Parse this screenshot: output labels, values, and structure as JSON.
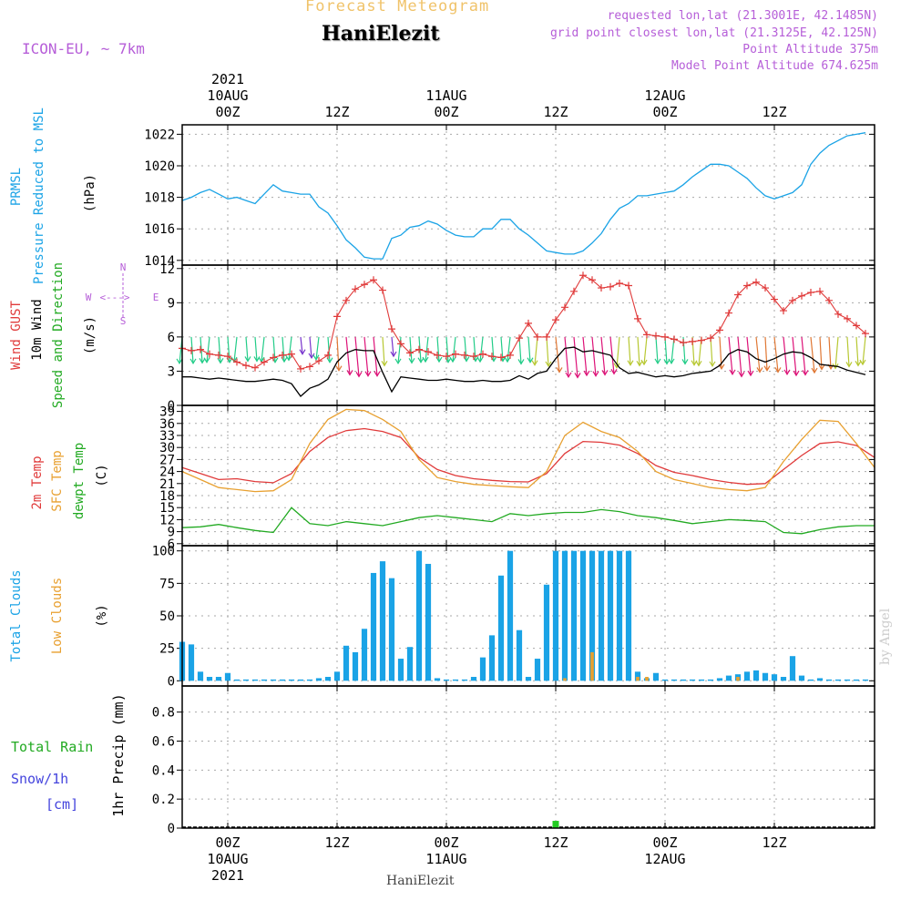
{
  "header": {
    "title": "Forecast Meteogram",
    "location": "HaniElezit",
    "model": "ICON-EU, ~ 7km",
    "requested": "requested lon,lat (21.3001E, 42.1485N)",
    "grid_point": "grid point closest lon,lat (21.3125E, 42.125N)",
    "point_altitude": "Point Altitude 375m",
    "model_altitude": "Model Point Altitude 674.625m"
  },
  "footer": {
    "location": "HaniElezit",
    "watermark": "by Angel"
  },
  "time_axis": {
    "start_hour": -5,
    "end_hour": 71,
    "major_ticks": [
      {
        "hour": 0,
        "top": "00Z",
        "date": "10AUG",
        "year": "2021"
      },
      {
        "hour": 12,
        "top": "12Z",
        "date": "",
        "year": ""
      },
      {
        "hour": 24,
        "top": "00Z",
        "date": "11AUG",
        "year": ""
      },
      {
        "hour": 36,
        "top": "12Z",
        "date": "",
        "year": ""
      },
      {
        "hour": 48,
        "top": "00Z",
        "date": "12AUG",
        "year": ""
      },
      {
        "hour": 60,
        "top": "12Z",
        "date": "",
        "year": ""
      }
    ]
  },
  "panel_labels": {
    "pressure": [
      {
        "text": "PRMSL",
        "color": "#1aa3e6"
      },
      {
        "text": "Pressure Reduced to MSL",
        "color": "#1aa3e6"
      },
      {
        "text": "(hPa)",
        "color": "#000000"
      }
    ],
    "wind": [
      {
        "text": "Wind GUST",
        "color": "#e03a3a"
      },
      {
        "text": "10m Wind",
        "color": "#000000"
      },
      {
        "text": "Speed and Direction",
        "color": "#22aa22"
      },
      {
        "text": "(m/s)",
        "color": "#000000"
      }
    ],
    "compass": {
      "w": "W",
      "e": "E",
      "n": "N",
      "s": "S",
      "color": "#b65ed8"
    },
    "temp": [
      {
        "text": "2m Temp",
        "color": "#e03a3a"
      },
      {
        "text": "SFC Temp",
        "color": "#e8a030"
      },
      {
        "text": "dewpt Temp",
        "color": "#22aa22"
      },
      {
        "text": "(C)",
        "color": "#000000"
      }
    ],
    "clouds": [
      {
        "text": "Total Clouds",
        "color": "#1aa3e6"
      },
      {
        "text": "Low Clouds",
        "color": "#e8a030"
      },
      {
        "text": "(%)",
        "color": "#000000"
      }
    ],
    "precip_side": [
      {
        "text": "Total  Rain",
        "color": "#22aa22"
      },
      {
        "text": "Snow/1h",
        "color": "#4444dd"
      },
      {
        "text": "[cm]",
        "color": "#4444dd"
      }
    ],
    "precip_axis": {
      "text": "1hr Precip (mm)",
      "color": "#000000"
    }
  },
  "chart_data": [
    {
      "type": "line",
      "title": "",
      "ylabel": "(hPa)",
      "ylim": [
        1013.7,
        1022.6
      ],
      "yticks": [
        1014,
        1016,
        1018,
        1020,
        1022
      ],
      "series": [
        {
          "name": "PRMSL",
          "color": "#1aa3e6",
          "x": [
            -5,
            -4,
            -3,
            -2,
            -1,
            0,
            1,
            2,
            3,
            4,
            5,
            6,
            7,
            8,
            9,
            10,
            11,
            12,
            13,
            14,
            15,
            16,
            17,
            18,
            19,
            20,
            21,
            22,
            23,
            24,
            25,
            26,
            27,
            28,
            29,
            30,
            31,
            32,
            33,
            34,
            35,
            36,
            37,
            38,
            39,
            40,
            41,
            42,
            43,
            44,
            45,
            46,
            47,
            48,
            49,
            50,
            51,
            52,
            53,
            54,
            55,
            56,
            57,
            58,
            59,
            60,
            61,
            62,
            63,
            64,
            65,
            66,
            67,
            68,
            69,
            70
          ],
          "values": [
            1017.8,
            1018.0,
            1018.3,
            1018.5,
            1018.2,
            1017.9,
            1018.0,
            1017.8,
            1017.6,
            1018.2,
            1018.8,
            1018.4,
            1018.3,
            1018.2,
            1018.2,
            1017.4,
            1017.0,
            1016.2,
            1015.3,
            1014.8,
            1014.2,
            1014.1,
            1014.1,
            1015.4,
            1015.6,
            1016.1,
            1016.2,
            1016.5,
            1016.3,
            1015.9,
            1015.6,
            1015.5,
            1015.5,
            1016.0,
            1016.0,
            1016.6,
            1016.6,
            1016.0,
            1015.6,
            1015.1,
            1014.6,
            1014.5,
            1014.4,
            1014.4,
            1014.6,
            1015.1,
            1015.7,
            1016.6,
            1017.3,
            1017.6,
            1018.1,
            1018.1,
            1018.2,
            1018.3,
            1018.4,
            1018.8,
            1019.3,
            1019.7,
            1020.1,
            1020.1,
            1020.0,
            1019.6,
            1019.2,
            1018.6,
            1018.1,
            1017.9,
            1018.1,
            1018.3,
            1018.8,
            1020.1,
            1020.8,
            1021.3,
            1021.6,
            1021.9,
            1022.0,
            1022.1
          ]
        }
      ]
    },
    {
      "type": "line",
      "title": "",
      "ylabel": "(m/s)",
      "ylim": [
        0,
        12.3
      ],
      "yticks": [
        0,
        3,
        6,
        9,
        12
      ],
      "series": [
        {
          "name": "Wind GUST",
          "color": "#e03a3a",
          "marker": "+",
          "x": [
            -5,
            -4,
            -3,
            -2,
            -1,
            0,
            1,
            2,
            3,
            4,
            5,
            6,
            7,
            8,
            9,
            10,
            11,
            12,
            13,
            14,
            15,
            16,
            17,
            18,
            19,
            20,
            21,
            22,
            23,
            24,
            25,
            26,
            27,
            28,
            29,
            30,
            31,
            32,
            33,
            34,
            35,
            36,
            37,
            38,
            39,
            40,
            41,
            42,
            43,
            44,
            45,
            46,
            47,
            48,
            49,
            50,
            51,
            52,
            53,
            54,
            55,
            56,
            57,
            58,
            59,
            60,
            61,
            62,
            63,
            64,
            65,
            66,
            67,
            68,
            69,
            70
          ],
          "values": [
            5.0,
            4.8,
            4.9,
            4.5,
            4.4,
            4.3,
            3.8,
            3.5,
            3.3,
            3.8,
            4.2,
            4.4,
            4.5,
            3.2,
            3.4,
            3.9,
            4.4,
            7.8,
            9.2,
            10.2,
            10.6,
            11.0,
            10.1,
            6.7,
            5.4,
            4.6,
            4.9,
            4.7,
            4.4,
            4.3,
            4.5,
            4.4,
            4.3,
            4.5,
            4.3,
            4.2,
            4.4,
            5.9,
            7.2,
            6.0,
            6.0,
            7.5,
            8.6,
            10.0,
            11.4,
            11.0,
            10.3,
            10.4,
            10.7,
            10.5,
            7.6,
            6.2,
            6.1,
            6.0,
            5.8,
            5.5,
            5.6,
            5.7,
            5.9,
            6.6,
            8.1,
            9.7,
            10.5,
            10.8,
            10.3,
            9.3,
            8.3,
            9.2,
            9.6,
            9.9,
            10.0,
            9.2,
            8.0,
            7.6,
            7.0,
            6.3
          ]
        },
        {
          "name": "10m Wind",
          "color": "#000000",
          "x": [
            -5,
            -4,
            -3,
            -2,
            -1,
            0,
            1,
            2,
            3,
            4,
            5,
            6,
            7,
            8,
            9,
            10,
            11,
            12,
            13,
            14,
            15,
            16,
            17,
            18,
            19,
            20,
            21,
            22,
            23,
            24,
            25,
            26,
            27,
            28,
            29,
            30,
            31,
            32,
            33,
            34,
            35,
            36,
            37,
            38,
            39,
            40,
            41,
            42,
            43,
            44,
            45,
            46,
            47,
            48,
            49,
            50,
            51,
            52,
            53,
            54,
            55,
            56,
            57,
            58,
            59,
            60,
            61,
            62,
            63,
            64,
            65,
            66,
            67,
            68,
            69,
            70
          ],
          "values": [
            2.5,
            2.5,
            2.4,
            2.3,
            2.4,
            2.3,
            2.2,
            2.1,
            2.1,
            2.2,
            2.3,
            2.2,
            1.9,
            0.8,
            1.5,
            1.8,
            2.3,
            3.8,
            4.6,
            4.9,
            4.8,
            4.8,
            2.9,
            1.2,
            2.5,
            2.4,
            2.3,
            2.2,
            2.2,
            2.3,
            2.2,
            2.1,
            2.1,
            2.2,
            2.1,
            2.1,
            2.2,
            2.6,
            2.3,
            2.8,
            3.0,
            4.1,
            5.0,
            5.1,
            4.7,
            4.8,
            4.6,
            4.4,
            3.3,
            2.8,
            2.9,
            2.7,
            2.5,
            2.6,
            2.5,
            2.6,
            2.8,
            2.9,
            3.0,
            3.5,
            4.5,
            4.9,
            4.7,
            4.1,
            3.8,
            4.1,
            4.5,
            4.7,
            4.6,
            4.2,
            3.6,
            3.5,
            3.4,
            3.1,
            2.9,
            2.7
          ]
        }
      ],
      "arrows": {
        "note": "wind direction vectors"
      }
    },
    {
      "type": "line",
      "title": "",
      "ylabel": "(C)",
      "ylim": [
        5.5,
        40.5
      ],
      "yticks": [
        6,
        9,
        12,
        15,
        18,
        21,
        24,
        27,
        30,
        33,
        36,
        39
      ],
      "series": [
        {
          "name": "2m Temp",
          "color": "#e03a3a",
          "x": [
            -5,
            -3,
            -1,
            1,
            3,
            5,
            7,
            9,
            11,
            13,
            15,
            17,
            19,
            21,
            23,
            25,
            27,
            29,
            31,
            33,
            35,
            37,
            39,
            41,
            43,
            45,
            47,
            49,
            51,
            53,
            55,
            57,
            59,
            61,
            63,
            65,
            67,
            69,
            71
          ],
          "values": [
            25.0,
            23.5,
            22.0,
            22.2,
            21.5,
            21.2,
            23.5,
            29.0,
            32.5,
            34.2,
            34.7,
            34.0,
            32.5,
            27.5,
            24.5,
            23.0,
            22.2,
            21.8,
            21.5,
            21.4,
            23.5,
            28.5,
            31.5,
            31.3,
            30.6,
            28.5,
            25.5,
            23.8,
            23.0,
            22.0,
            21.3,
            20.8,
            21.0,
            24.5,
            28.0,
            31.0,
            31.4,
            30.5,
            27.5
          ]
        },
        {
          "name": "SFC Temp",
          "color": "#e8a030",
          "x": [
            -5,
            -3,
            -1,
            1,
            3,
            5,
            7,
            9,
            11,
            13,
            15,
            17,
            19,
            21,
            23,
            25,
            27,
            29,
            31,
            33,
            35,
            37,
            39,
            41,
            43,
            45,
            47,
            49,
            51,
            53,
            55,
            57,
            59,
            61,
            63,
            65,
            67,
            69,
            71
          ],
          "values": [
            24.0,
            22.0,
            20.0,
            19.5,
            19.0,
            19.2,
            22.0,
            31.0,
            37.0,
            39.5,
            39.2,
            37.0,
            34.0,
            27.0,
            22.5,
            21.5,
            20.8,
            20.5,
            20.2,
            20.0,
            24.0,
            33.0,
            36.3,
            34.0,
            32.5,
            29.0,
            24.0,
            22.0,
            21.0,
            20.0,
            19.5,
            19.2,
            20.0,
            26.5,
            32.0,
            36.8,
            36.5,
            31.0,
            25.0
          ]
        },
        {
          "name": "dewpt Temp",
          "color": "#22aa22",
          "x": [
            -5,
            -3,
            -1,
            1,
            3,
            5,
            7,
            9,
            11,
            13,
            15,
            17,
            19,
            21,
            23,
            25,
            27,
            29,
            31,
            33,
            35,
            37,
            39,
            41,
            43,
            45,
            47,
            49,
            51,
            53,
            55,
            57,
            59,
            61,
            63,
            65,
            67,
            69,
            71
          ],
          "values": [
            10.0,
            10.2,
            10.8,
            10.0,
            9.3,
            8.8,
            15.0,
            11.0,
            10.5,
            11.5,
            11.0,
            10.5,
            11.5,
            12.5,
            13.0,
            12.5,
            12.0,
            11.5,
            13.5,
            13.0,
            13.5,
            13.8,
            13.8,
            14.5,
            14.0,
            13.0,
            12.5,
            11.8,
            11.0,
            11.5,
            12.0,
            11.8,
            11.5,
            8.8,
            8.5,
            9.5,
            10.2,
            10.5,
            10.5
          ]
        }
      ]
    },
    {
      "type": "bar",
      "title": "",
      "ylabel": "(%)",
      "ylim": [
        -4,
        104
      ],
      "yticks": [
        0,
        25,
        50,
        75,
        100
      ],
      "series": [
        {
          "name": "Total Clouds",
          "color": "#1aa3e6",
          "x": [
            -5,
            -4,
            -3,
            -2,
            -1,
            0,
            1,
            2,
            3,
            4,
            5,
            6,
            7,
            8,
            9,
            10,
            11,
            12,
            13,
            14,
            15,
            16,
            17,
            18,
            19,
            20,
            21,
            22,
            23,
            24,
            25,
            26,
            27,
            28,
            29,
            30,
            31,
            32,
            33,
            34,
            35,
            36,
            37,
            38,
            39,
            40,
            41,
            42,
            43,
            44,
            45,
            46,
            47,
            48,
            49,
            50,
            51,
            52,
            53,
            54,
            55,
            56,
            57,
            58,
            59,
            60,
            61,
            62,
            63,
            64,
            65,
            66,
            67,
            68,
            69,
            70
          ],
          "values": [
            30,
            28,
            7,
            3,
            3,
            6,
            1,
            1,
            1,
            1,
            1,
            1,
            1,
            1,
            1,
            2,
            3,
            7,
            27,
            22,
            40,
            83,
            92,
            79,
            17,
            26,
            100,
            90,
            2,
            1,
            1,
            1,
            3,
            18,
            35,
            81,
            100,
            39,
            3,
            17,
            74,
            100,
            100,
            100,
            100,
            100,
            100,
            100,
            100,
            100,
            7,
            2,
            6,
            1,
            1,
            1,
            1,
            1,
            1,
            2,
            4,
            5,
            7,
            8,
            6,
            5,
            3,
            19,
            4,
            1,
            2,
            1,
            1,
            1,
            1,
            1
          ]
        },
        {
          "name": "Low Clouds",
          "color": "#e8a030",
          "x": [
            37,
            40,
            45,
            46,
            56
          ],
          "values": [
            2,
            22,
            3,
            3,
            3
          ]
        }
      ]
    },
    {
      "type": "bar",
      "title": "",
      "ylabel": "1hr Precip (mm)",
      "ylim": [
        0,
        0.98
      ],
      "yticks": [
        0,
        0.2,
        0.4,
        0.6,
        0.8
      ],
      "series": [
        {
          "name": "Total Rain",
          "color": "#22cc22",
          "x": [
            36
          ],
          "values": [
            0.05
          ]
        }
      ]
    }
  ]
}
